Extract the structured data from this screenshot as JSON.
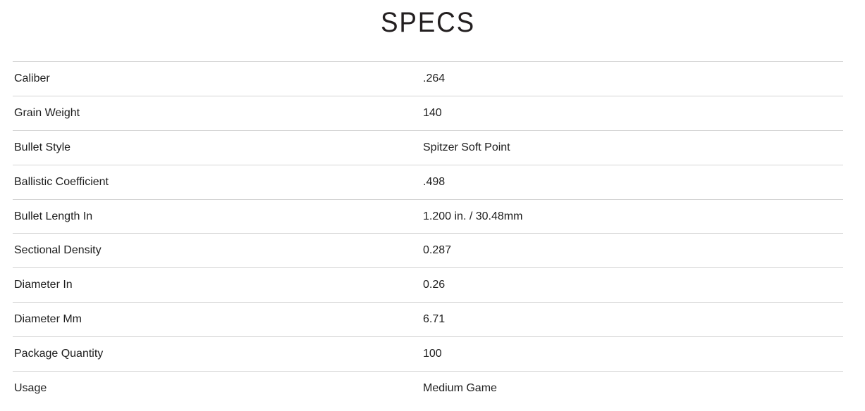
{
  "page": {
    "title": "SPECS"
  },
  "specs_table": {
    "rows": [
      {
        "label": "Caliber",
        "value": ".264"
      },
      {
        "label": "Grain Weight",
        "value": "140"
      },
      {
        "label": "Bullet Style",
        "value": "Spitzer Soft Point"
      },
      {
        "label": "Ballistic Coefficient",
        "value": ".498"
      },
      {
        "label": "Bullet Length In",
        "value": "1.200 in. / 30.48mm"
      },
      {
        "label": "Sectional Density",
        "value": "0.287"
      },
      {
        "label": "Diameter In",
        "value": "0.26"
      },
      {
        "label": "Diameter Mm",
        "value": "6.71"
      },
      {
        "label": "Package Quantity",
        "value": "100"
      },
      {
        "label": "Usage",
        "value": "Medium Game"
      }
    ]
  },
  "colors": {
    "background": "#ffffff",
    "title_text": "#231f20",
    "row_text": "#1d1d1d",
    "divider": "#d4d4d4"
  }
}
